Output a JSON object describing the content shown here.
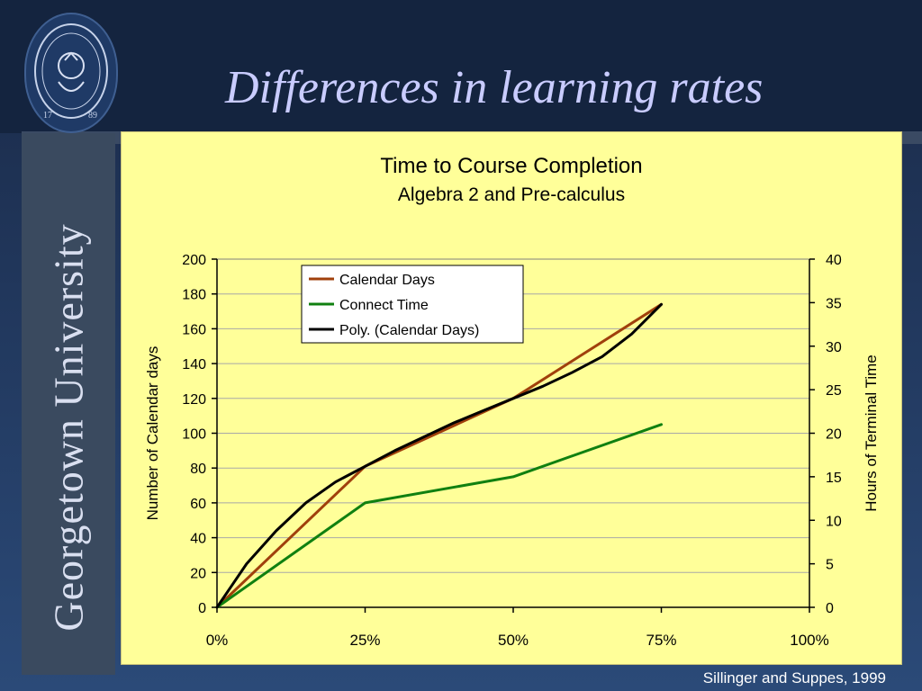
{
  "slide": {
    "title": "Differences in learning rates",
    "university": "Georgetown University",
    "credit": "Sillinger and Suppes, 1999"
  },
  "chart_data": {
    "type": "line",
    "title": "Time to Course Completion",
    "subtitle": "Algebra  2 and Pre-calculus",
    "xlabel": "",
    "ylabel_left": "Number of Calendar days",
    "ylabel_right": "Hours of Terminal Time",
    "x_ticks": [
      "0%",
      "25%",
      "50%",
      "75%",
      "100%"
    ],
    "x_values": [
      0,
      25,
      50,
      75,
      100
    ],
    "ylim_left": [
      0,
      200
    ],
    "ylim_right": [
      0,
      40
    ],
    "y_ticks_left": [
      0,
      20,
      40,
      60,
      80,
      100,
      120,
      140,
      160,
      180,
      200
    ],
    "y_ticks_right": [
      0,
      5,
      10,
      15,
      20,
      25,
      30,
      35,
      40
    ],
    "grid": true,
    "legend_position": "top-center",
    "series": [
      {
        "name": "Calendar Days",
        "axis": "left",
        "color": "#a0400c",
        "x": [
          0,
          25,
          50,
          75
        ],
        "values": [
          0,
          81,
          120,
          174
        ]
      },
      {
        "name": "Connect Time",
        "axis": "right",
        "color": "#108010",
        "x": [
          0,
          25,
          50,
          75
        ],
        "values": [
          0,
          12,
          15,
          21
        ]
      },
      {
        "name": "Poly. (Calendar Days)",
        "axis": "left",
        "color": "#000000",
        "type": "trendline",
        "x": [
          0,
          5,
          10,
          15,
          20,
          25,
          30,
          35,
          40,
          45,
          50,
          55,
          60,
          65,
          70,
          75
        ],
        "values": [
          0,
          25,
          44,
          60,
          72,
          81,
          90,
          98,
          106,
          113,
          120,
          127,
          135,
          144,
          157,
          174
        ]
      }
    ]
  }
}
